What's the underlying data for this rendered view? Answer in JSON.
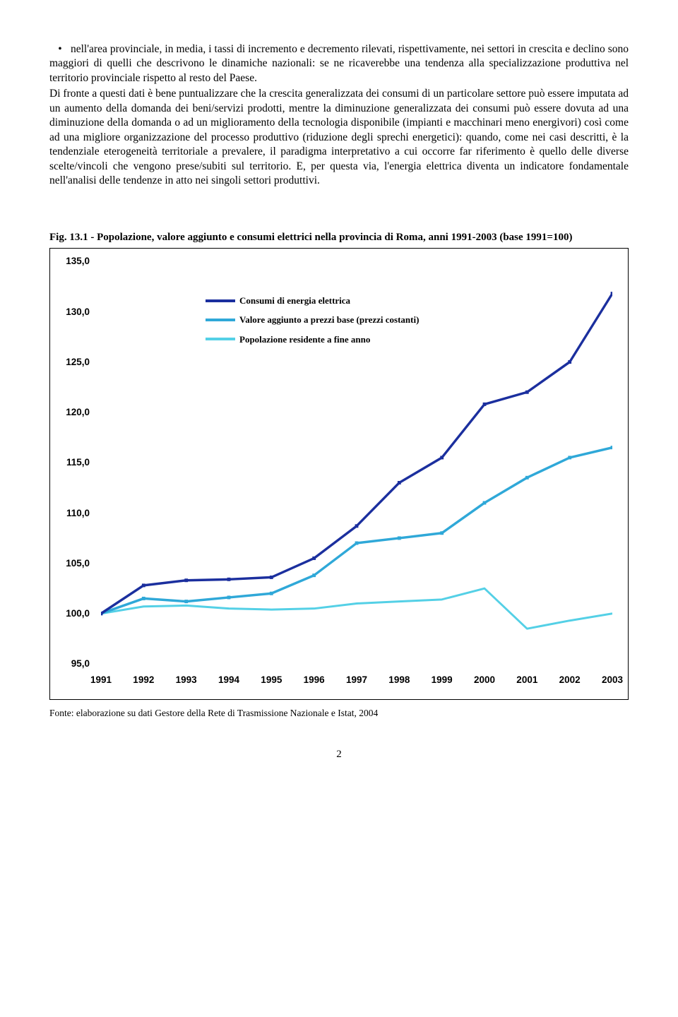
{
  "paragraphs": {
    "bullet": "nell'area provinciale, in media, i tassi di incremento e decremento rilevati, rispettivamente, nei settori in crescita e declino sono maggiori di quelli che descrivono le dinamiche nazionali: se ne ricaverebbe una tendenza alla specializzazione produttiva nel territorio provinciale rispetto al resto del Paese.",
    "body": "Di fronte a questi dati è bene puntualizzare che la crescita generalizzata dei consumi di un particolare settore può essere imputata ad un aumento della domanda dei beni/servizi prodotti, mentre la diminuzione generalizzata dei consumi può essere dovuta ad una diminuzione della domanda o ad un miglioramento della tecnologia disponibile (impianti e macchinari meno energivori) così come ad una migliore organizzazione del processo produttivo (riduzione degli sprechi energetici): quando, come nei casi descritti, è la tendenziale eterogeneità territoriale a prevalere, il paradigma interpretativo a cui occorre far riferimento è quello delle diverse scelte/vincoli che vengono prese/subiti sul territorio. E, per questa via, l'energia elettrica diventa un indicatore fondamentale nell'analisi delle tendenze in atto nei singoli settori produttivi."
  },
  "figure": {
    "title": "Fig. 13.1 - Popolazione, valore aggiunto e consumi elettrici nella provincia di Roma, anni 1991-2003 (base 1991=100)",
    "source": "Fonte: elaborazione su dati Gestore della Rete di Trasmissione Nazionale e Istat, 2004"
  },
  "chart": {
    "type": "line",
    "years": [
      "1991",
      "1992",
      "1993",
      "1994",
      "1995",
      "1996",
      "1997",
      "1998",
      "1999",
      "2000",
      "2001",
      "2002",
      "2003"
    ],
    "ylim": [
      95,
      135
    ],
    "ytick_step": 5,
    "yticks": [
      "95,0",
      "100,0",
      "105,0",
      "110,0",
      "115,0",
      "120,0",
      "125,0",
      "130,0",
      "135,0"
    ],
    "series": [
      {
        "name": "Consumi di energia elettrica",
        "color": "#1b2f9e",
        "width": 3.5,
        "marker_size": 5,
        "values": [
          100.0,
          102.8,
          103.3,
          103.4,
          103.6,
          105.5,
          108.7,
          113.0,
          115.5,
          120.8,
          122.0,
          125.0,
          131.8
        ]
      },
      {
        "name": "Valore aggiunto a prezzi base (prezzi costanti)",
        "color": "#2fa8d8",
        "width": 3.5,
        "marker_size": 5,
        "values": [
          100.0,
          101.5,
          101.2,
          101.6,
          102.0,
          103.8,
          107.0,
          107.5,
          108.0,
          111.0,
          113.5,
          115.5,
          116.5
        ]
      },
      {
        "name": "Popolazione residente a fine anno",
        "color": "#54d0e6",
        "width": 3.0,
        "marker_size": 0,
        "values": [
          100.0,
          100.7,
          100.8,
          100.5,
          100.4,
          100.5,
          101.0,
          101.2,
          101.4,
          102.5,
          98.5,
          99.3,
          100.0
        ]
      }
    ],
    "background_color": "#ffffff"
  },
  "page_number": "2"
}
